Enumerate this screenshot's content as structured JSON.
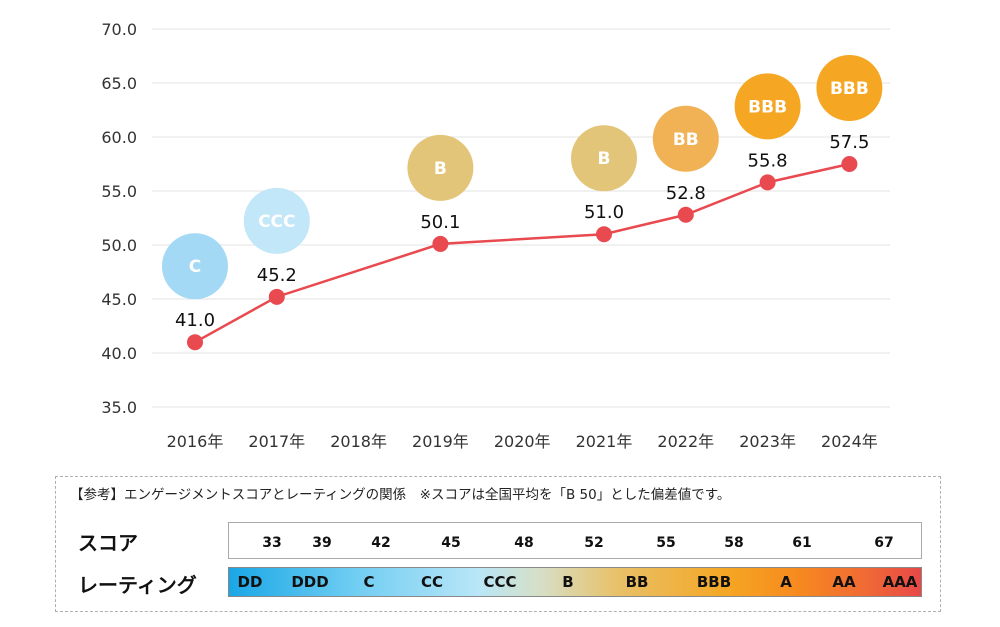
{
  "chart_data": {
    "type": "line",
    "categories": [
      "2016年",
      "2017年",
      "2018年",
      "2019年",
      "2020年",
      "2021年",
      "2022年",
      "2023年",
      "2024年"
    ],
    "ylim": [
      35.0,
      70.0
    ],
    "yticks": [
      "35.0",
      "40.0",
      "45.0",
      "50.0",
      "55.0",
      "60.0",
      "65.0",
      "70.0"
    ],
    "grid": true,
    "series": [
      {
        "color": "#e84a4f",
        "points": [
          {
            "x": "2016年",
            "y": 41.0,
            "label": "41.0"
          },
          {
            "x": "2017年",
            "y": 45.2,
            "label": "45.2"
          },
          {
            "x": "2019年",
            "y": 50.1,
            "label": "50.1"
          },
          {
            "x": "2021年",
            "y": 51.0,
            "label": "51.0"
          },
          {
            "x": "2022年",
            "y": 52.8,
            "label": "52.8"
          },
          {
            "x": "2023年",
            "y": 55.8,
            "label": "55.8"
          },
          {
            "x": "2024年",
            "y": 57.5,
            "label": "57.5"
          }
        ]
      }
    ],
    "rating_badges": [
      {
        "x": "2016年",
        "rating": "C",
        "color": "#a3d9f5"
      },
      {
        "x": "2017年",
        "rating": "CCC",
        "color": "#c2e7f8"
      },
      {
        "x": "2019年",
        "rating": "B",
        "color": "#e3c57a"
      },
      {
        "x": "2021年",
        "rating": "B",
        "color": "#e3c57a"
      },
      {
        "x": "2022年",
        "rating": "BB",
        "color": "#f0b254"
      },
      {
        "x": "2023年",
        "rating": "BBB",
        "color": "#f5a623"
      },
      {
        "x": "2024年",
        "rating": "BBB",
        "color": "#f5a623"
      }
    ]
  },
  "legend": {
    "note": "【参考】エンゲージメントスコアとレーティングの関係　※スコアは全国平均を「B 50」とした偏差値です。",
    "score_label": "スコア",
    "rating_label": "レーティング",
    "scores": [
      "33",
      "39",
      "42",
      "45",
      "48",
      "52",
      "55",
      "58",
      "61",
      "67"
    ],
    "ratings": [
      "DD",
      "DDD",
      "C",
      "CC",
      "CCC",
      "B",
      "BB",
      "BBB",
      "A",
      "AA",
      "AAA"
    ]
  }
}
